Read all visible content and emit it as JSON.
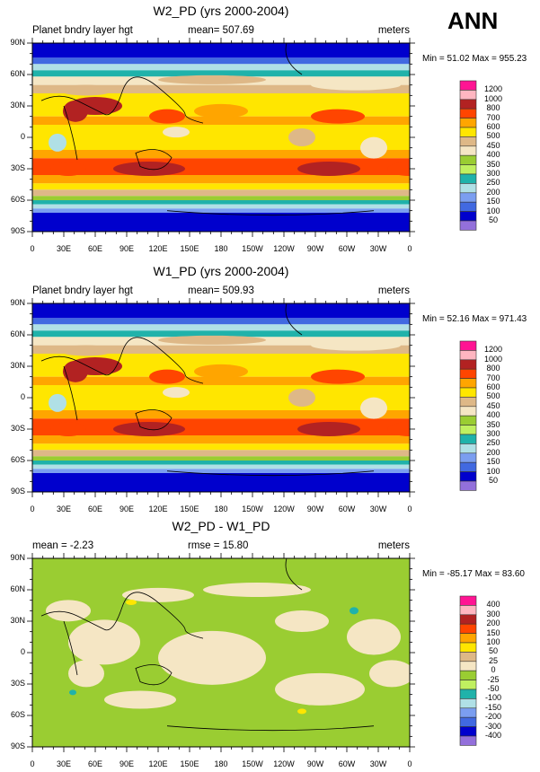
{
  "season": "ANN",
  "lon_labels": [
    "0",
    "30E",
    "60E",
    "90E",
    "120E",
    "150E",
    "180",
    "150W",
    "120W",
    "90W",
    "60W",
    "30W",
    "0"
  ],
  "lat_labels": [
    "90N",
    "60N",
    "30N",
    "0",
    "30S",
    "60S",
    "90S"
  ],
  "panels": [
    {
      "title": "W2_PD (yrs 2000-2004)",
      "left": "Planet bndry layer hgt",
      "center": "mean= 507.69",
      "right": "meters",
      "minmax": "Min =  51.02 Max = 955.23",
      "levels": [
        "1200",
        "1000",
        "800",
        "700",
        "600",
        "500",
        "450",
        "400",
        "350",
        "300",
        "250",
        "200",
        "150",
        "100",
        "50"
      ]
    },
    {
      "title": "W1_PD (yrs 2000-2004)",
      "left": "Planet bndry layer hgt",
      "center": "mean= 509.93",
      "right": "meters",
      "minmax": "Min =  52.16 Max = 971.43",
      "levels": [
        "1200",
        "1000",
        "800",
        "700",
        "600",
        "500",
        "450",
        "400",
        "350",
        "300",
        "250",
        "200",
        "150",
        "100",
        "50"
      ]
    },
    {
      "title": "W2_PD - W1_PD",
      "left": "mean =  -2.23",
      "center": "rmse =  15.80",
      "right": "meters",
      "minmax": "Min = -85.17 Max =  83.60",
      "levels": [
        "400",
        "300",
        "200",
        "150",
        "100",
        "50",
        "25",
        "0",
        "-25",
        "-50",
        "-100",
        "-150",
        "-200",
        "-300",
        "-400"
      ]
    }
  ],
  "colorbar": [
    "#ff1493",
    "#ffb6c1",
    "#b22222",
    "#ff4500",
    "#ffa500",
    "#ffe600",
    "#deb887",
    "#f5e6c4",
    "#9acd32",
    "#c0f060",
    "#20b2aa",
    "#b0e0e6",
    "#7b9ef0",
    "#4169e1",
    "#0000cd",
    "#9370db"
  ]
}
